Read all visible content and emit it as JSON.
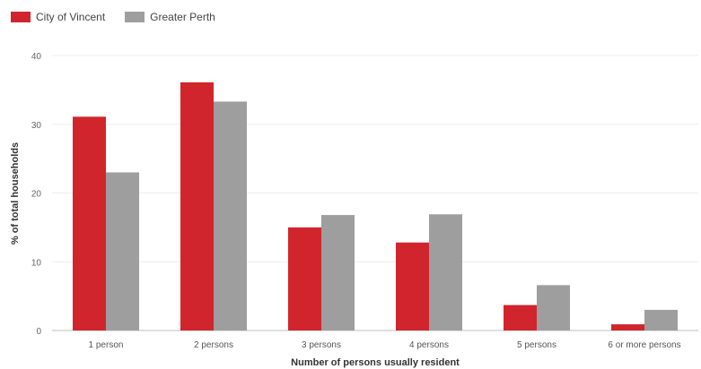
{
  "chart_data": {
    "type": "bar",
    "title": "",
    "xlabel": "Number of persons usually resident",
    "ylabel": "% of total households",
    "ylim": [
      0,
      40
    ],
    "yticks": [
      0,
      10,
      20,
      30,
      40
    ],
    "grid": true,
    "legend_position": "top-left",
    "categories": [
      "1 person",
      "2 persons",
      "3 persons",
      "4 persons",
      "5 persons",
      "6 or more persons"
    ],
    "series": [
      {
        "name": "City of Vincent",
        "color": "#d1252d",
        "values": [
          31.1,
          36.1,
          15.0,
          12.8,
          3.7,
          0.9
        ]
      },
      {
        "name": "Greater Perth",
        "color": "#9e9e9e",
        "values": [
          23.0,
          33.3,
          16.8,
          16.9,
          6.6,
          3.0
        ]
      }
    ]
  }
}
